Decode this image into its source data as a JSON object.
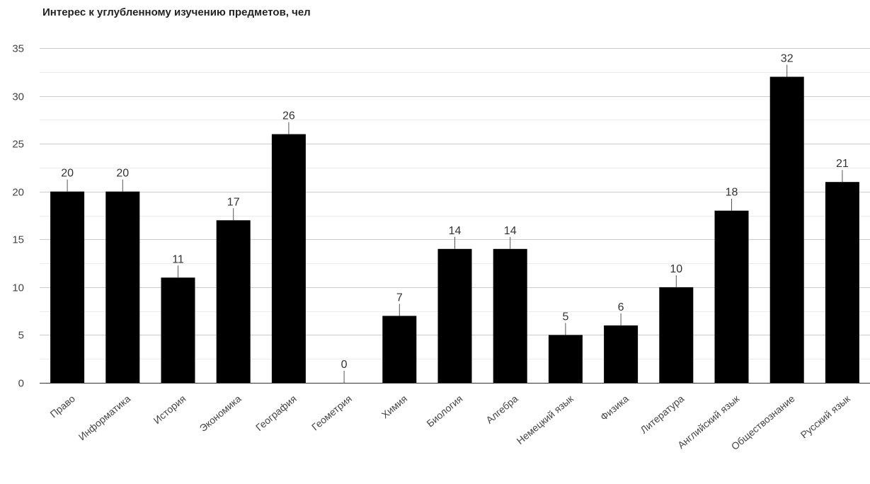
{
  "chart_data": {
    "type": "bar",
    "title": "Интерес к углубленному изучению предметов, чел",
    "xlabel": "",
    "ylabel": "",
    "ylim": [
      0,
      35
    ],
    "yticks": [
      0,
      5,
      10,
      15,
      20,
      25,
      30,
      35
    ],
    "grid": true,
    "legend": "none",
    "categories": [
      "Право",
      "Информатика",
      "История",
      "Экономика",
      "География",
      "Геометрия",
      "Химия",
      "Биология",
      "Алгебра",
      "Немецкий язык",
      "Физика",
      "Литература",
      "Английский язык",
      "Обществознание",
      "Русский язык"
    ],
    "values": [
      20,
      20,
      11,
      17,
      26,
      0,
      7,
      14,
      14,
      5,
      6,
      10,
      18,
      32,
      21
    ],
    "bar_color": "#000000",
    "grid_color": "#cccccc",
    "minor_grid_color": "#ececec",
    "axis_color": "#333333",
    "label_color": "#444444"
  }
}
